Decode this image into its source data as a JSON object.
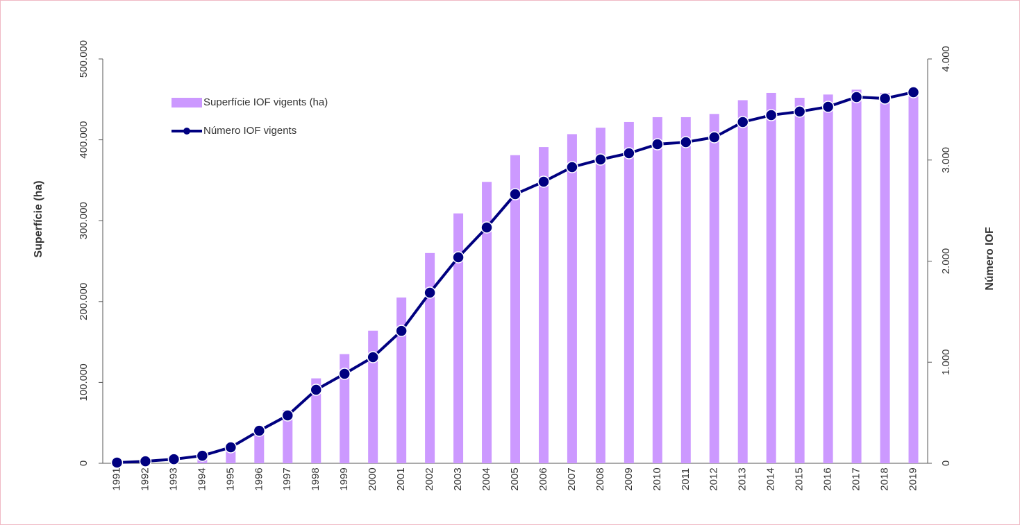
{
  "chart_data": {
    "type": "bar_line",
    "y_label": "Superfície (ha)",
    "y2_label": "Número IOF",
    "categories": [
      "1991",
      "1992",
      "1993",
      "1994",
      "1995",
      "1996",
      "1997",
      "1998",
      "1999",
      "2000",
      "2001",
      "2002",
      "2003",
      "2004",
      "2005",
      "2006",
      "2007",
      "2008",
      "2009",
      "2010",
      "2011",
      "2012",
      "2013",
      "2014",
      "2015",
      "2016",
      "2017",
      "2018",
      "2019"
    ],
    "series": [
      {
        "name": "Superfície IOF vigents (ha)",
        "type": "bar",
        "color": "#cc99ff",
        "values": [
          1000,
          2000,
          4000,
          8000,
          23000,
          45000,
          66000,
          105000,
          135000,
          164000,
          205000,
          260000,
          309000,
          348000,
          381000,
          391000,
          407000,
          415000,
          422000,
          428000,
          428000,
          432000,
          449000,
          458000,
          452000,
          456000,
          462000,
          458000,
          462000
        ]
      },
      {
        "name": "Número IOF vigents",
        "type": "line",
        "axis": "y2",
        "color": "#000080",
        "values": [
          7,
          20,
          40,
          75,
          158,
          322,
          473,
          727,
          885,
          1050,
          1310,
          1688,
          2038,
          2333,
          2662,
          2786,
          2930,
          3005,
          3067,
          3156,
          3177,
          3225,
          3376,
          3444,
          3479,
          3527,
          3623,
          3609,
          3671
        ]
      }
    ],
    "ylim": [
      0,
      500000
    ],
    "yticks": [
      0,
      {
        "value": 100000,
        "label": "100.000"
      },
      {
        "value": 200000,
        "label": "200.000"
      },
      {
        "value": 300000,
        "label": "300.000"
      },
      {
        "value": 400000,
        "label": "400.000"
      },
      {
        "value": 500000,
        "label": "500.000"
      }
    ],
    "y2lim": [
      0,
      4000
    ],
    "y2ticks": [
      0,
      {
        "value": 1000,
        "label": "1.000"
      },
      {
        "value": 2000,
        "label": "2.000"
      },
      {
        "value": 3000,
        "label": "3.000"
      },
      {
        "value": 4000,
        "label": "4.000"
      }
    ],
    "legend": "top-left"
  }
}
